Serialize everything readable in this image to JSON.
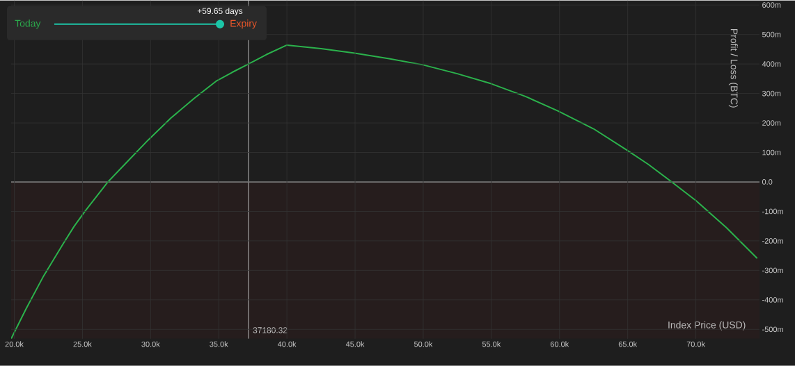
{
  "chart_data": {
    "type": "line",
    "xlabel": "Index Price   (USD)",
    "ylabel": "Profit / Loss   (BTC)",
    "annotations": [
      "Today",
      "+59.65 days",
      "Expiry"
    ],
    "x": [
      19770,
      20870,
      22150,
      23610,
      24400,
      25230,
      26870,
      28170,
      29820,
      31500,
      33190,
      34850,
      36000,
      37110,
      38500,
      40000,
      42500,
      44970,
      47500,
      49980,
      52500,
      54990,
      57500,
      59870,
      62500,
      64900,
      66500,
      68230,
      70000,
      72240,
      74500
    ],
    "values": [
      -532,
      -430,
      -319,
      -208,
      -150,
      -97,
      0,
      63,
      142,
      217,
      283,
      343,
      372,
      398,
      432,
      464,
      452,
      437,
      418,
      397,
      367,
      333,
      290,
      241,
      180,
      109,
      60,
      0,
      -63,
      -155,
      -259
    ],
    "color": "#2bb24c",
    "line_style": "solid",
    "grid": true,
    "xlim": [
      19770,
      74670
    ],
    "ylim": [
      -532,
      615
    ],
    "xticks": [
      {
        "value": 20000,
        "label": "20.0k"
      },
      {
        "value": 25000,
        "label": "25.0k"
      },
      {
        "value": 30000,
        "label": "30.0k"
      },
      {
        "value": 35000,
        "label": "35.0k"
      },
      {
        "value": 40000,
        "label": "40.0k"
      },
      {
        "value": 45000,
        "label": "45.0k"
      },
      {
        "value": 50000,
        "label": "50.0k"
      },
      {
        "value": 55000,
        "label": "55.0k"
      },
      {
        "value": 60000,
        "label": "60.0k"
      },
      {
        "value": 65000,
        "label": "65.0k"
      },
      {
        "value": 70000,
        "label": "70.0k"
      }
    ],
    "yticks": [
      {
        "value": -500,
        "label": "-500m"
      },
      {
        "value": -400,
        "label": "-400m"
      },
      {
        "value": -300,
        "label": "-300m"
      },
      {
        "value": -200,
        "label": "-200m"
      },
      {
        "value": -100,
        "label": "-100m"
      },
      {
        "value": 0,
        "label": "0.0"
      },
      {
        "value": 100,
        "label": "100m"
      },
      {
        "value": 200,
        "label": "200m"
      },
      {
        "value": 300,
        "label": "300m"
      },
      {
        "value": 400,
        "label": "400m"
      },
      {
        "value": 500,
        "label": "500m"
      },
      {
        "value": 600,
        "label": "600m"
      }
    ],
    "tick_labels": "xy",
    "ref_lines": [
      {
        "axis": "x",
        "value": 37180.32,
        "label": "37180.32",
        "color": "#bbbbbb"
      },
      {
        "axis": "y",
        "value": 0,
        "color": "#b0b0b0"
      }
    ],
    "bands": [
      {
        "axis": "y",
        "from": -532,
        "to": 0,
        "color": "#261d1d"
      }
    ]
  }
}
